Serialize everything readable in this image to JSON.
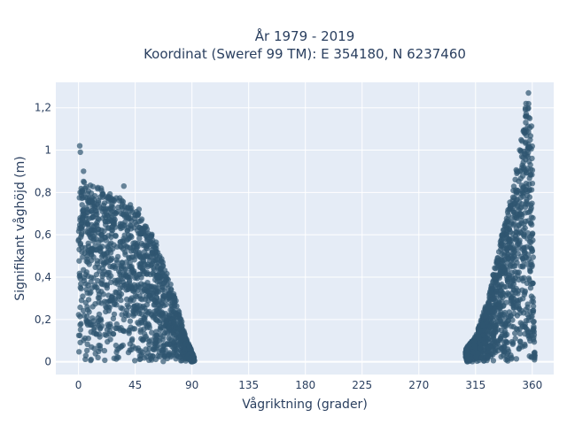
{
  "chart_data": {
    "type": "scatter",
    "title_line1": "År 1979 - 2019",
    "title_line2": "Koordinat (Sweref 99 TM): E 354180, N 6237460",
    "xlabel": "Vågriktning (grader)",
    "ylabel": "Signifikant våghöjd (m)",
    "xlim": [
      -18,
      377
    ],
    "ylim": [
      -0.06,
      1.32
    ],
    "x_ticks": [
      0,
      45,
      90,
      135,
      180,
      225,
      270,
      315,
      360
    ],
    "x_tick_labels": [
      "0",
      "45",
      "90",
      "135",
      "180",
      "225",
      "270",
      "315",
      "360"
    ],
    "y_ticks": [
      0,
      0.2,
      0.4,
      0.6,
      0.8,
      1.0,
      1.2
    ],
    "y_tick_labels": [
      "0",
      "0,2",
      "0,4",
      "0,6",
      "0,8",
      "1",
      "1,2"
    ],
    "grid": true,
    "marker_color": "#2f5670",
    "plot_bg": "#e5ecf6",
    "envelope_left": [
      [
        0,
        1.02
      ],
      [
        3,
        0.86
      ],
      [
        12,
        0.84
      ],
      [
        22,
        0.8
      ],
      [
        35,
        0.78
      ],
      [
        45,
        0.72
      ],
      [
        55,
        0.64
      ],
      [
        62,
        0.56
      ],
      [
        70,
        0.42
      ],
      [
        78,
        0.28
      ],
      [
        85,
        0.12
      ],
      [
        92,
        0.02
      ]
    ],
    "envelope_right": [
      [
        307,
        0.06
      ],
      [
        315,
        0.12
      ],
      [
        325,
        0.3
      ],
      [
        332,
        0.5
      ],
      [
        340,
        0.7
      ],
      [
        346,
        0.86
      ],
      [
        352,
        1.08
      ],
      [
        356,
        1.27
      ],
      [
        360,
        1.1
      ],
      [
        361,
        0.3
      ],
      [
        362,
        0.02
      ]
    ]
  }
}
